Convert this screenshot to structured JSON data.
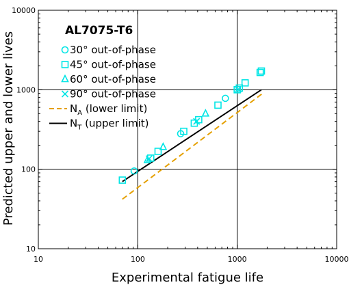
{
  "chart_data": {
    "type": "scatter",
    "title": "AL7075-T6",
    "xlabel": "Experimental fatigue life",
    "ylabel": "Predicted upper and lower lives",
    "xscale": "log",
    "yscale": "log",
    "xlim": [
      10,
      10000
    ],
    "ylim": [
      10,
      10000
    ],
    "xticks": [
      10,
      100,
      1000,
      10000
    ],
    "yticks": [
      10,
      100,
      1000,
      10000
    ],
    "grid": "major lines at 100 and 1000",
    "legend_position": "top-left",
    "colors": {
      "marker": "#00e5e5",
      "lower_limit": "#e5a000",
      "upper_limit": "#000000"
    },
    "series": [
      {
        "name": "30° out-of-phase",
        "marker": "circle",
        "points": [
          [
            92,
            95
          ],
          [
            270,
            280
          ],
          [
            760,
            780
          ]
        ]
      },
      {
        "name": "45° out-of-phase",
        "marker": "square",
        "points": [
          [
            70,
            73
          ],
          [
            135,
            138
          ],
          [
            160,
            168
          ],
          [
            290,
            300
          ],
          [
            370,
            380
          ],
          [
            410,
            420
          ],
          [
            640,
            640
          ],
          [
            1000,
            1000
          ],
          [
            1050,
            1050
          ],
          [
            1200,
            1220
          ],
          [
            1700,
            1650
          ],
          [
            1750,
            1720
          ]
        ]
      },
      {
        "name": "60° out-of-phase",
        "marker": "triangle",
        "points": [
          [
            125,
            130
          ],
          [
            180,
            190
          ],
          [
            480,
            500
          ]
        ]
      },
      {
        "name": "90° out-of-phase",
        "marker": "x",
        "points": [
          [
            130,
            136
          ],
          [
            390,
            400
          ],
          [
            1020,
            1010
          ]
        ]
      },
      {
        "name": "N",
        "subscript": "A",
        "suffix": " (lower limit)",
        "style": "dashed",
        "points": [
          [
            70,
            42
          ],
          [
            1800,
            900
          ]
        ]
      },
      {
        "name": "N",
        "subscript": "T",
        "suffix": " (upper limit)",
        "style": "solid",
        "points": [
          [
            70,
            70
          ],
          [
            1750,
            1000
          ]
        ]
      }
    ]
  }
}
